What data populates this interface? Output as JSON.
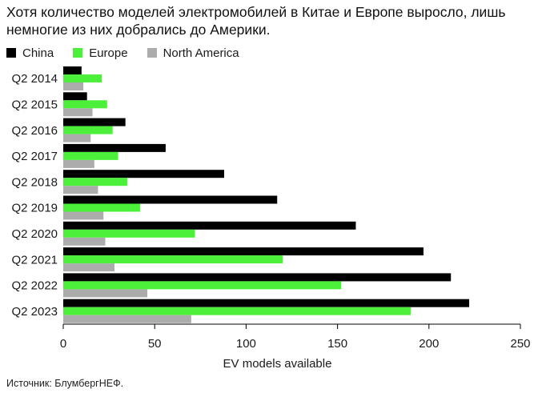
{
  "title": "Хотя количество моделей электромобилей в Китае и Европе выросло, лишь немногие из них добрались до Америки.",
  "source": "Источник: БлумбергНЕФ.",
  "colors": {
    "china": "#000000",
    "europe": "#4cf03a",
    "north_america": "#acacac",
    "axis": "#000000"
  },
  "chart_data": {
    "type": "bar",
    "orientation": "horizontal",
    "categories": [
      "Q2 2014",
      "Q2 2015",
      "Q2 2016",
      "Q2 2017",
      "Q2 2018",
      "Q2 2019",
      "Q2 2020",
      "Q2 2021",
      "Q2 2022",
      "Q2 2023"
    ],
    "series": [
      {
        "name": "China",
        "values": [
          10,
          13,
          34,
          56,
          88,
          117,
          160,
          197,
          212,
          222
        ]
      },
      {
        "name": "Europe",
        "values": [
          21,
          24,
          27,
          30,
          35,
          42,
          72,
          120,
          152,
          190
        ]
      },
      {
        "name": "North America",
        "values": [
          11,
          16,
          15,
          17,
          19,
          22,
          23,
          28,
          46,
          70
        ]
      }
    ],
    "xlabel": "EV models available",
    "ylabel": "",
    "xlim": [
      0,
      250
    ],
    "xticks": [
      0,
      50,
      100,
      150,
      200,
      250
    ],
    "grid": false,
    "legend": "top-left"
  }
}
